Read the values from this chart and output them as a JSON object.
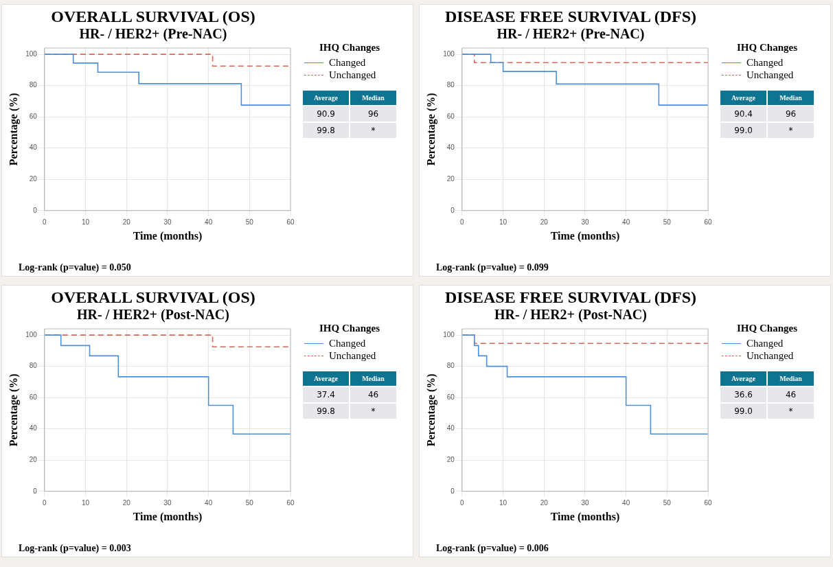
{
  "chart_data": [
    {
      "type": "step",
      "title": "OVERALL SURVIVAL (OS)",
      "subtitle": "HR- / HER2+ (Pre-NAC)",
      "xlabel": "Time (months)",
      "ylabel": "Percentage (%)",
      "legend_title": "IHQ Changes",
      "legend": "right",
      "grid": true,
      "xlim": [
        0,
        60
      ],
      "xticks": [
        0,
        10,
        20,
        30,
        40,
        50,
        60
      ],
      "ylim": [
        0,
        104
      ],
      "yticks": [
        0,
        20,
        40,
        60,
        80,
        100
      ],
      "series": [
        {
          "name": "Changed",
          "color": "#4a90d9",
          "line_style": "solid",
          "x": [
            0,
            7,
            13,
            23,
            48,
            60
          ],
          "values": [
            100,
            94.4,
            88.5,
            81.2,
            67.5,
            67.5
          ]
        },
        {
          "name": "Unchanged",
          "color": "#d9665a",
          "line_style": "dashed",
          "x": [
            0,
            41,
            60
          ],
          "values": [
            100,
            92.5,
            92.5
          ]
        }
      ],
      "annotations": [
        "Average",
        "Median",
        "90.9",
        "96",
        "99.8",
        "*",
        "Log-rank (p=value) = 0.050"
      ]
    },
    {
      "type": "step",
      "title": "DISEASE FREE SURVIVAL (DFS)",
      "subtitle": "HR- / HER2+ (Pre-NAC)",
      "xlabel": "Time (months)",
      "ylabel": "Percentage (%)",
      "legend_title": "IHQ Changes",
      "legend": "right",
      "grid": true,
      "xlim": [
        0,
        60
      ],
      "xticks": [
        0,
        10,
        20,
        30,
        40,
        50,
        60
      ],
      "ylim": [
        0,
        104
      ],
      "yticks": [
        0,
        20,
        40,
        60,
        80,
        100
      ],
      "series": [
        {
          "name": "Changed",
          "color": "#4a90d9",
          "line_style": "solid",
          "x": [
            0,
            7,
            10,
            23,
            48,
            60
          ],
          "values": [
            100,
            94.7,
            89,
            81,
            67.5,
            67.5
          ]
        },
        {
          "name": "Unchanged",
          "color": "#d9665a",
          "line_style": "dashed",
          "x": [
            0,
            3,
            60
          ],
          "values": [
            100,
            94.7,
            94.7
          ]
        }
      ],
      "annotations": [
        "Average",
        "Median",
        "90.4",
        "96",
        "99.0",
        "*",
        "Log-rank (p=value) = 0.099"
      ]
    },
    {
      "type": "step",
      "title": "OVERALL SURVIVAL (OS)",
      "subtitle": "HR- / HER2+ (Post-NAC)",
      "xlabel": "Time (months)",
      "ylabel": "Percentage (%)",
      "legend_title": "IHQ Changes",
      "legend": "right",
      "grid": true,
      "xlim": [
        0,
        60
      ],
      "xticks": [
        0,
        10,
        20,
        30,
        40,
        50,
        60
      ],
      "ylim": [
        0,
        104
      ],
      "yticks": [
        0,
        20,
        40,
        60,
        80,
        100
      ],
      "series": [
        {
          "name": "Changed",
          "color": "#4a90d9",
          "line_style": "solid",
          "x": [
            0,
            4,
            11,
            18,
            40,
            46,
            60
          ],
          "values": [
            100,
            93.3,
            86.7,
            73.3,
            55,
            36.7,
            36.7
          ]
        },
        {
          "name": "Unchanged",
          "color": "#d9665a",
          "line_style": "dashed",
          "x": [
            0,
            41,
            60
          ],
          "values": [
            100,
            92.5,
            92.5
          ]
        }
      ],
      "annotations": [
        "Average",
        "Median",
        "37.4",
        "46",
        "99.8",
        "*",
        "Log-rank (p=value) = 0.003"
      ]
    },
    {
      "type": "step",
      "title": "DISEASE FREE SURVIVAL (DFS)",
      "subtitle": "HR- / HER2+ (Post-NAC)",
      "xlabel": "Time (months)",
      "ylabel": "Percentage (%)",
      "legend_title": "IHQ Changes",
      "legend": "right",
      "grid": true,
      "xlim": [
        0,
        60
      ],
      "xticks": [
        0,
        10,
        20,
        30,
        40,
        50,
        60
      ],
      "ylim": [
        0,
        104
      ],
      "yticks": [
        0,
        20,
        40,
        60,
        80,
        100
      ],
      "series": [
        {
          "name": "Changed",
          "color": "#4a90d9",
          "line_style": "solid",
          "x": [
            0,
            3,
            4,
            6,
            11,
            40,
            46,
            60
          ],
          "values": [
            100,
            93.3,
            86.7,
            80,
            73.3,
            55,
            36.7,
            36.7
          ]
        },
        {
          "name": "Unchanged",
          "color": "#d9665a",
          "line_style": "dashed",
          "x": [
            0,
            3,
            60
          ],
          "values": [
            100,
            94.7,
            94.7
          ]
        }
      ],
      "annotations": [
        "Average",
        "Median",
        "36.6",
        "46",
        "99.0",
        "*",
        "Log-rank (p=value) = 0.006"
      ]
    }
  ]
}
